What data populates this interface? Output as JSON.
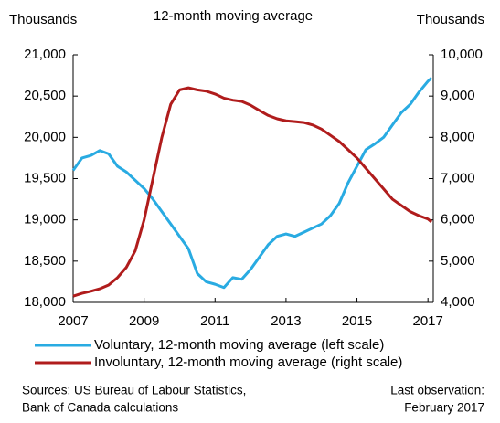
{
  "chart_data": {
    "type": "line",
    "title": "12-month moving average",
    "y_label": "Thousands",
    "y2_label": "Thousands",
    "x": [
      2007.0,
      2007.25,
      2007.5,
      2007.75,
      2008.0,
      2008.25,
      2008.5,
      2008.75,
      2009.0,
      2009.25,
      2009.5,
      2009.75,
      2010.0,
      2010.25,
      2010.5,
      2010.75,
      2011.0,
      2011.25,
      2011.5,
      2011.75,
      2012.0,
      2012.25,
      2012.5,
      2012.75,
      2013.0,
      2013.25,
      2013.5,
      2013.75,
      2014.0,
      2014.25,
      2014.5,
      2014.75,
      2015.0,
      2015.25,
      2015.5,
      2015.75,
      2016.0,
      2016.25,
      2016.5,
      2016.75,
      2017.0,
      2017.1
    ],
    "series": [
      {
        "name": "Voluntary, 12-month moving average (left scale)",
        "color": "#29abe2",
        "axis": "y",
        "values": [
          19600,
          19750,
          19780,
          19840,
          19800,
          19650,
          19580,
          19480,
          19380,
          19250,
          19100,
          18950,
          18800,
          18650,
          18350,
          18250,
          18220,
          18180,
          18300,
          18280,
          18400,
          18550,
          18700,
          18800,
          18830,
          18800,
          18850,
          18900,
          18950,
          19050,
          19200,
          19450,
          19650,
          19850,
          19920,
          20000,
          20150,
          20300,
          20400,
          20550,
          20680,
          20720
        ]
      },
      {
        "name": "Involuntary, 12-month moving average (right scale)",
        "color": "#b01c1c",
        "axis": "y2",
        "values": [
          4150,
          4220,
          4270,
          4330,
          4420,
          4600,
          4850,
          5250,
          6000,
          7000,
          8000,
          8800,
          9150,
          9200,
          9150,
          9120,
          9050,
          8950,
          8900,
          8870,
          8780,
          8650,
          8530,
          8450,
          8400,
          8380,
          8360,
          8300,
          8200,
          8050,
          7900,
          7700,
          7500,
          7250,
          7000,
          6750,
          6500,
          6350,
          6200,
          6100,
          6020,
          5950
        ]
      }
    ],
    "xlim": [
      2007,
      2017.15
    ],
    "xticks": [
      2007,
      2009,
      2011,
      2013,
      2015,
      2017
    ],
    "ylim": [
      18000,
      21000
    ],
    "yticks": [
      {
        "value": 18000,
        "label": "18,000"
      },
      {
        "value": 18500,
        "label": "18,500"
      },
      {
        "value": 19000,
        "label": "19,000"
      },
      {
        "value": 19500,
        "label": "19,500"
      },
      {
        "value": 20000,
        "label": "20,000"
      },
      {
        "value": 20500,
        "label": "20,500"
      },
      {
        "value": 21000,
        "label": "21,000"
      }
    ],
    "y2lim": [
      4000,
      10000
    ],
    "y2ticks": [
      {
        "value": 4000,
        "label": "4,000"
      },
      {
        "value": 5000,
        "label": "5,000"
      },
      {
        "value": 6000,
        "label": "6,000"
      },
      {
        "value": 7000,
        "label": "7,000"
      },
      {
        "value": 8000,
        "label": "8,000"
      },
      {
        "value": 9000,
        "label": "9,000"
      },
      {
        "value": 10000,
        "label": "10,000"
      }
    ],
    "sources": [
      "Sources: US Bureau of Labour Statistics,",
      "Bank of Canada calculations"
    ],
    "last_observation": [
      "Last observation:",
      "February 2017"
    ]
  }
}
